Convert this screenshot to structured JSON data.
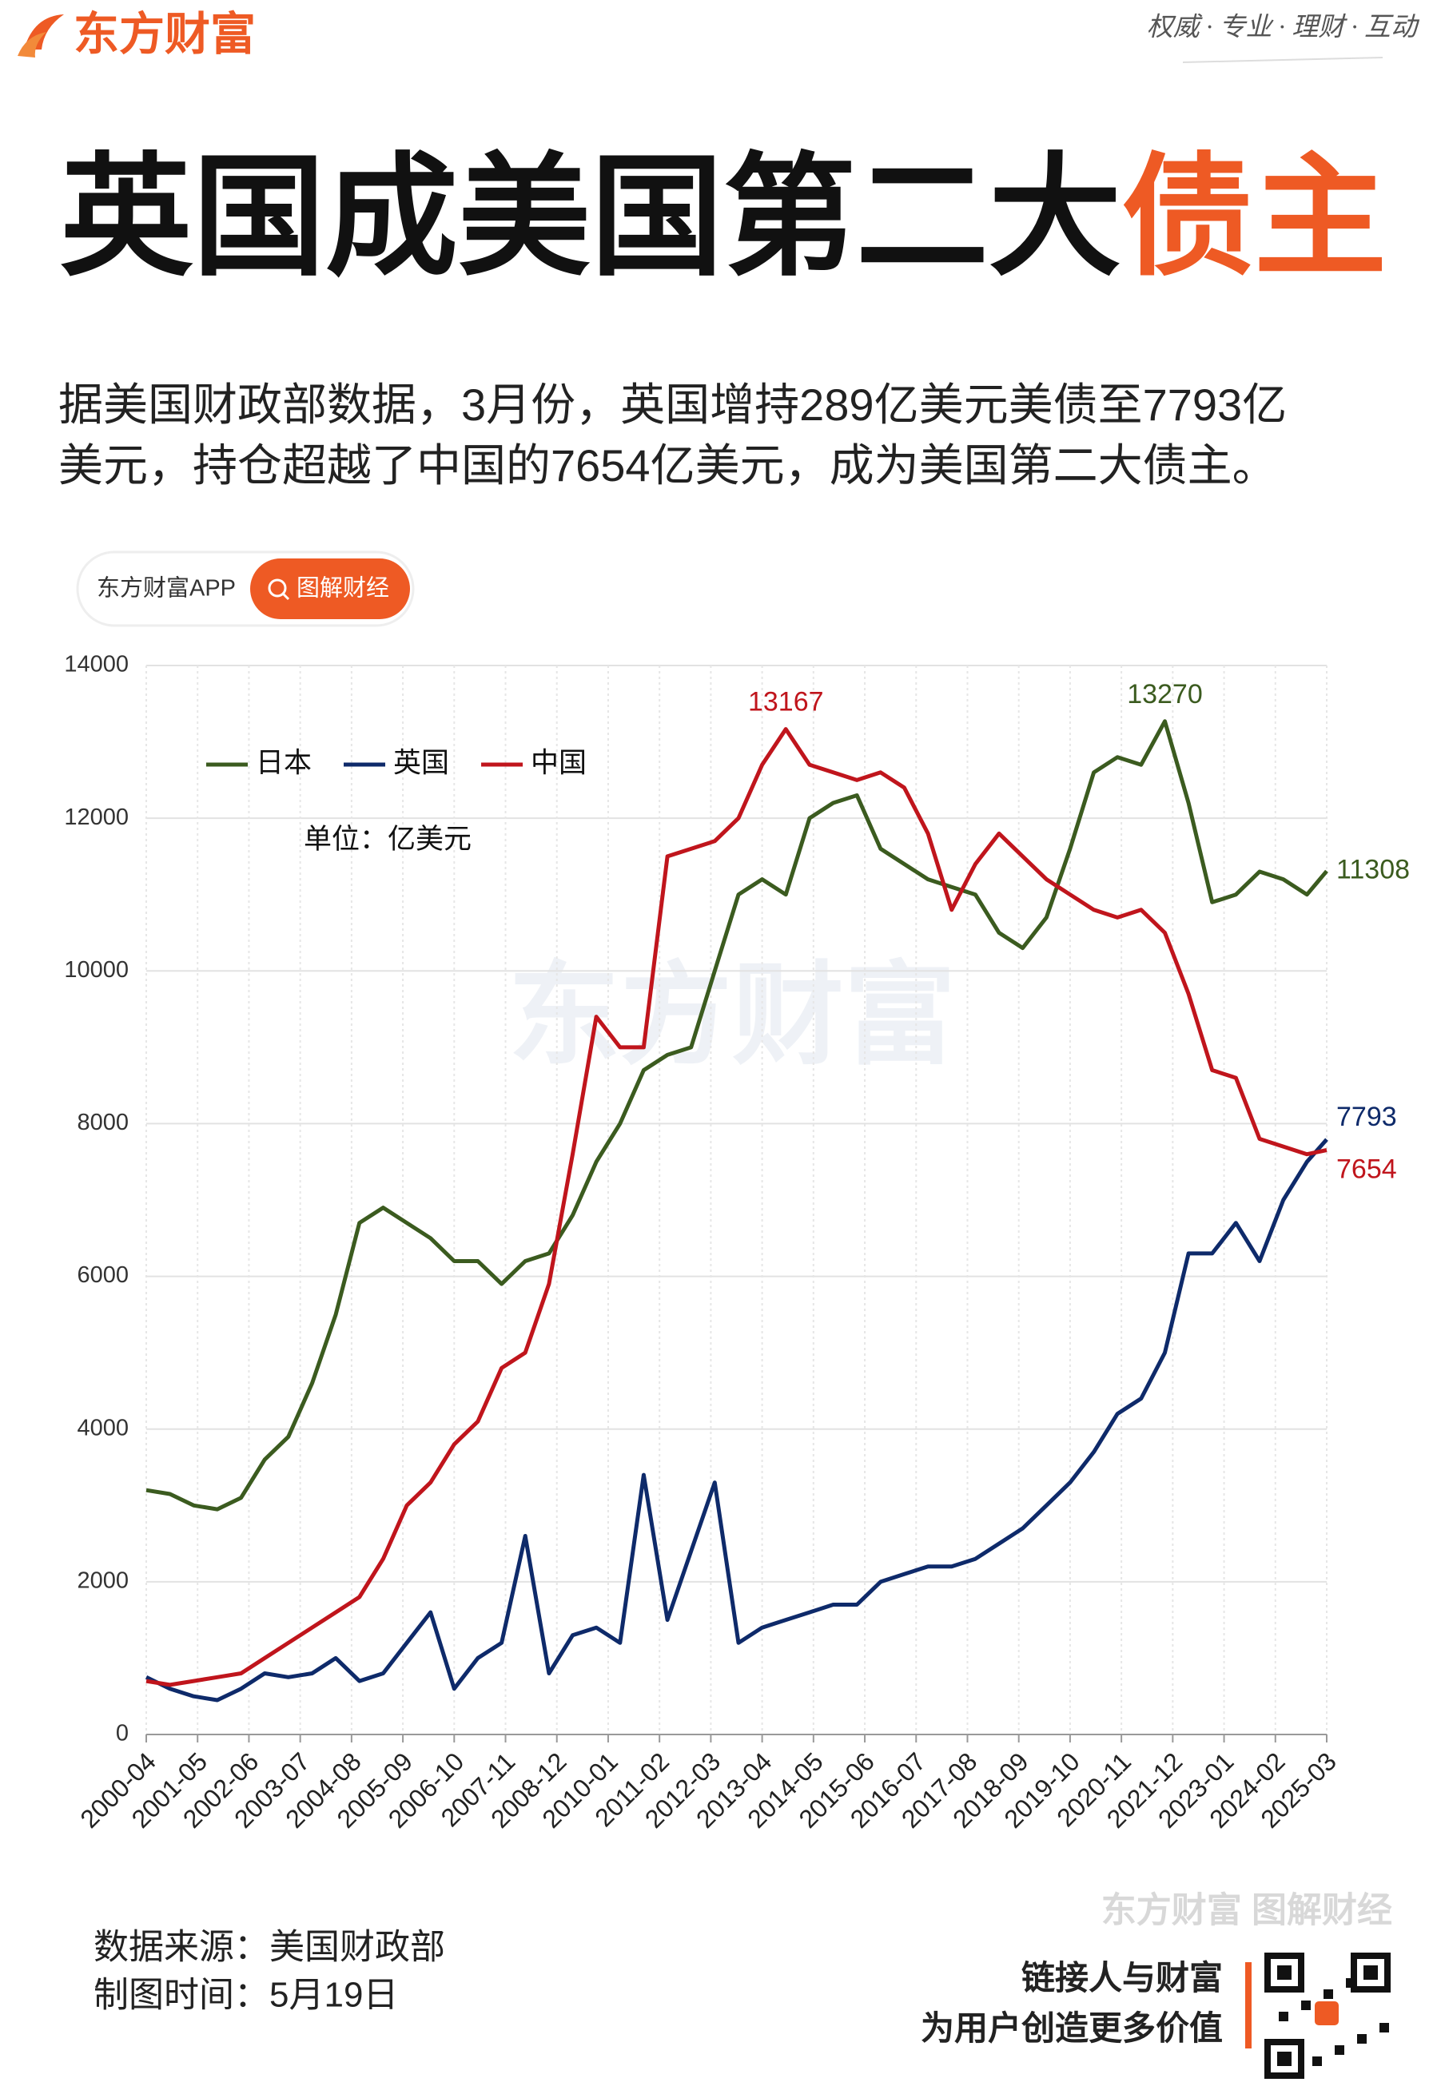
{
  "header": {
    "logo": "东方财富",
    "slogan": "权威 · 专业 · 理财 · 互动"
  },
  "headline": {
    "main": "英国成美国第二大",
    "highlight": "债主"
  },
  "summary": [
    "据美国财政部数据，3月份，英国增持289亿美元美债至7793亿",
    "美元，持仓超越了中国的7654亿美元，成为美国第二大债主。"
  ],
  "tabs": [
    "东方财富APP",
    "图解财经"
  ],
  "chart_data": {
    "type": "line",
    "unit": "单位：亿美元",
    "watermark": "东方财富",
    "x": [
      "2000-04",
      "2000-10",
      "2001-04",
      "2001-10",
      "2002-04",
      "2002-10",
      "2003-04",
      "2003-10",
      "2004-04",
      "2004-10",
      "2005-04",
      "2005-10",
      "2006-04",
      "2006-10",
      "2007-04",
      "2007-10",
      "2008-04",
      "2008-10",
      "2009-04",
      "2009-10",
      "2010-04",
      "2010-10",
      "2011-04",
      "2011-10",
      "2012-04",
      "2012-10",
      "2013-04",
      "2013-10",
      "2014-04",
      "2014-10",
      "2015-04",
      "2015-10",
      "2016-04",
      "2016-10",
      "2017-04",
      "2017-10",
      "2018-04",
      "2018-10",
      "2019-04",
      "2019-10",
      "2020-04",
      "2020-10",
      "2021-04",
      "2021-10",
      "2022-04",
      "2022-10",
      "2023-04",
      "2023-10",
      "2024-04",
      "2024-10",
      "2025-03"
    ],
    "xlim": [
      "2000-04",
      "2025-03"
    ],
    "xticks": [
      "2000-04",
      "2001-05",
      "2002-06",
      "2003-07",
      "2004-08",
      "2005-09",
      "2006-10",
      "2007-11",
      "2008-12",
      "2010-01",
      "2011-02",
      "2012-03",
      "2013-04",
      "2014-05",
      "2015-06",
      "2016-07",
      "2017-08",
      "2018-09",
      "2019-10",
      "2020-11",
      "2021-12",
      "2023-01",
      "2024-02",
      "2025-03"
    ],
    "ylim": [
      0,
      14000
    ],
    "yticks": [
      0,
      2000,
      4000,
      6000,
      8000,
      10000,
      12000,
      14000
    ],
    "grid": true,
    "legend": "top-left",
    "series": [
      {
        "name": "日本",
        "color": "#3b5b1f",
        "label_peak": true,
        "label_last": true,
        "values": [
          3200,
          3150,
          3000,
          2950,
          3100,
          3600,
          3900,
          4600,
          5500,
          6700,
          6900,
          6700,
          6500,
          6200,
          6200,
          5900,
          6200,
          6300,
          6800,
          7500,
          8000,
          8700,
          8900,
          9000,
          10000,
          11000,
          11200,
          11000,
          12000,
          12200,
          12300,
          11600,
          11400,
          11200,
          11100,
          11000,
          10500,
          10300,
          10700,
          11600,
          12600,
          12800,
          12700,
          13270,
          12200,
          10900,
          11000,
          11300,
          11200,
          11000,
          11308
        ]
      },
      {
        "name": "英国",
        "color": "#0e2a6a",
        "label_peak": false,
        "label_last": true,
        "values": [
          750,
          600,
          500,
          450,
          600,
          800,
          750,
          800,
          1000,
          700,
          800,
          1200,
          1600,
          600,
          1000,
          1200,
          2600,
          800,
          1300,
          1400,
          1200,
          3400,
          1500,
          2400,
          3300,
          1200,
          1400,
          1500,
          1600,
          1700,
          1700,
          2000,
          2100,
          2200,
          2200,
          2300,
          2500,
          2700,
          3000,
          3300,
          3700,
          4200,
          4400,
          5000,
          6300,
          6300,
          6700,
          6200,
          7000,
          7500,
          7793
        ]
      },
      {
        "name": "中国",
        "color": "#c0151c",
        "label_peak": true,
        "label_last": true,
        "values": [
          700,
          650,
          700,
          750,
          800,
          1000,
          1200,
          1400,
          1600,
          1800,
          2300,
          3000,
          3300,
          3800,
          4100,
          4800,
          5000,
          5900,
          7600,
          9400,
          9000,
          9000,
          11500,
          11600,
          11700,
          12000,
          12700,
          13167,
          12700,
          12600,
          12500,
          12600,
          12400,
          11800,
          10800,
          11400,
          11800,
          11500,
          11200,
          11000,
          10800,
          10700,
          10800,
          10500,
          9700,
          8700,
          8600,
          7800,
          7700,
          7600,
          7654
        ]
      }
    ]
  },
  "footer": {
    "brand": "东方财富 图解财经",
    "source": "数据来源：美国财政部",
    "date": "制图时间：5月19日",
    "slogan1": "链接人与财富",
    "slogan2": "为用户创造更多价值"
  }
}
